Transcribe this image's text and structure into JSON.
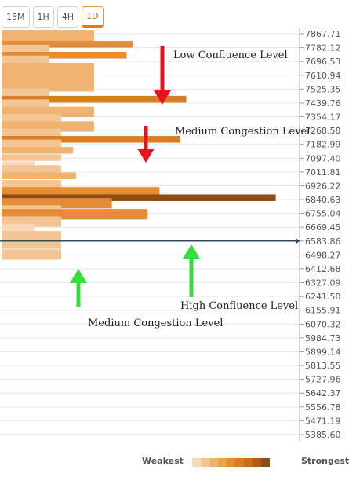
{
  "tabs": [
    {
      "label": "15M",
      "active": false
    },
    {
      "label": "1H",
      "active": false
    },
    {
      "label": "4H",
      "active": false
    },
    {
      "label": "1D",
      "active": true
    }
  ],
  "chart_data": {
    "type": "bar",
    "orientation": "horizontal",
    "y_ticks": [
      "7867.71",
      "7782.12",
      "7696.53",
      "7610.94",
      "7525.35",
      "7439.76",
      "7354.17",
      "7268.58",
      "7182.99",
      "7097.40",
      "7011.81",
      "6926.22",
      "6840.63",
      "6755.04",
      "6669.45",
      "6583.86",
      "6498.27",
      "6412.68",
      "6327.09",
      "6241.50",
      "6155.91",
      "6070.32",
      "5984.73",
      "5899.14",
      "5813.55",
      "5727.96",
      "5642.37",
      "5556.78",
      "5471.19",
      "5385.60"
    ],
    "ylim": [
      5385.6,
      7867.71
    ],
    "current_price": 6583.86,
    "max_strength": 1.0,
    "bars": [
      {
        "price": 7871,
        "strength": 0.31,
        "level": 2
      },
      {
        "price": 7848,
        "strength": 0.31,
        "level": 2
      },
      {
        "price": 7826,
        "strength": 0.31,
        "level": 2
      },
      {
        "price": 7803,
        "strength": 0.44,
        "level": 4
      },
      {
        "price": 7780,
        "strength": 0.16,
        "level": 1
      },
      {
        "price": 7758,
        "strength": 0.16,
        "level": 1
      },
      {
        "price": 7735,
        "strength": 0.42,
        "level": 4
      },
      {
        "price": 7712,
        "strength": 0.16,
        "level": 1
      },
      {
        "price": 7690,
        "strength": 0.16,
        "level": 1
      },
      {
        "price": 7667,
        "strength": 0.31,
        "level": 2
      },
      {
        "price": 7645,
        "strength": 0.31,
        "level": 2
      },
      {
        "price": 7622,
        "strength": 0.31,
        "level": 2
      },
      {
        "price": 7599,
        "strength": 0.31,
        "level": 2
      },
      {
        "price": 7577,
        "strength": 0.31,
        "level": 2
      },
      {
        "price": 7554,
        "strength": 0.31,
        "level": 2
      },
      {
        "price": 7531,
        "strength": 0.31,
        "level": 2
      },
      {
        "price": 7509,
        "strength": 0.16,
        "level": 1
      },
      {
        "price": 7486,
        "strength": 0.16,
        "level": 1
      },
      {
        "price": 7463,
        "strength": 0.62,
        "level": 5
      },
      {
        "price": 7441,
        "strength": 0.16,
        "level": 1
      },
      {
        "price": 7418,
        "strength": 0.16,
        "level": 1
      },
      {
        "price": 7396,
        "strength": 0.31,
        "level": 2
      },
      {
        "price": 7373,
        "strength": 0.31,
        "level": 2
      },
      {
        "price": 7350,
        "strength": 0.2,
        "level": 1
      },
      {
        "price": 7328,
        "strength": 0.2,
        "level": 1
      },
      {
        "price": 7305,
        "strength": 0.31,
        "level": 2
      },
      {
        "price": 7282,
        "strength": 0.31,
        "level": 2
      },
      {
        "price": 7260,
        "strength": 0.2,
        "level": 1
      },
      {
        "price": 7237,
        "strength": 0.2,
        "level": 1
      },
      {
        "price": 7214,
        "strength": 0.6,
        "level": 5
      },
      {
        "price": 7192,
        "strength": 0.2,
        "level": 1
      },
      {
        "price": 7169,
        "strength": 0.2,
        "level": 1
      },
      {
        "price": 7146,
        "strength": 0.24,
        "level": 2
      },
      {
        "price": 7101,
        "strength": 0.2,
        "level": 1
      },
      {
        "price": 7056,
        "strength": 0.11,
        "level": 0
      },
      {
        "price": 7033,
        "strength": 0.2,
        "level": 1
      },
      {
        "price": 7010,
        "strength": 0.2,
        "level": 1
      },
      {
        "price": 6988,
        "strength": 0.25,
        "level": 2
      },
      {
        "price": 6942,
        "strength": 0.2,
        "level": 1
      },
      {
        "price": 6920,
        "strength": 0.2,
        "level": 1
      },
      {
        "price": 6897,
        "strength": 0.53,
        "level": 4
      },
      {
        "price": 6874,
        "strength": 0.53,
        "level": 4
      },
      {
        "price": 6852,
        "strength": 0.92,
        "level": 8
      },
      {
        "price": 6829,
        "strength": 0.37,
        "level": 4
      },
      {
        "price": 6806,
        "strength": 0.37,
        "level": 4
      },
      {
        "price": 6784,
        "strength": 0.2,
        "level": 1
      },
      {
        "price": 6761,
        "strength": 0.49,
        "level": 4
      },
      {
        "price": 6738,
        "strength": 0.49,
        "level": 4
      },
      {
        "price": 6716,
        "strength": 0.2,
        "level": 1
      },
      {
        "price": 6693,
        "strength": 0.2,
        "level": 1
      },
      {
        "price": 6670,
        "strength": 0.11,
        "level": 0
      },
      {
        "price": 6648,
        "strength": 0.11,
        "level": 0
      },
      {
        "price": 6625,
        "strength": 0.2,
        "level": 1
      },
      {
        "price": 6602,
        "strength": 0.2,
        "level": 1
      },
      {
        "price": 6580,
        "strength": 0.2,
        "level": 1
      },
      {
        "price": 6557,
        "strength": 0.2,
        "level": 1
      },
      {
        "price": 6512,
        "strength": 0.2,
        "level": 1
      },
      {
        "price": 6489,
        "strength": 0.2,
        "level": 1
      }
    ]
  },
  "annotations": {
    "low_confluence": "Low Confluence Level",
    "medium_congestion_top": "Medium Congestion Level",
    "high_confluence": "High Confluence Level",
    "medium_congestion_bottom": "Medium Congestion Level"
  },
  "legend": {
    "weakest": "Weakest",
    "strongest": "Strongest",
    "colors": [
      "#f7d8b8",
      "#f3c595",
      "#efb271",
      "#eaa052",
      "#e48d36",
      "#dc7c22",
      "#c66c1b",
      "#ad5d17",
      "#8f4c13"
    ]
  },
  "colors": {
    "arrow_red": "#e3141b",
    "arrow_green": "#33e03a",
    "grid": "#e6e6e6",
    "axis_text": "#555555",
    "current_marker": "#34495e"
  }
}
